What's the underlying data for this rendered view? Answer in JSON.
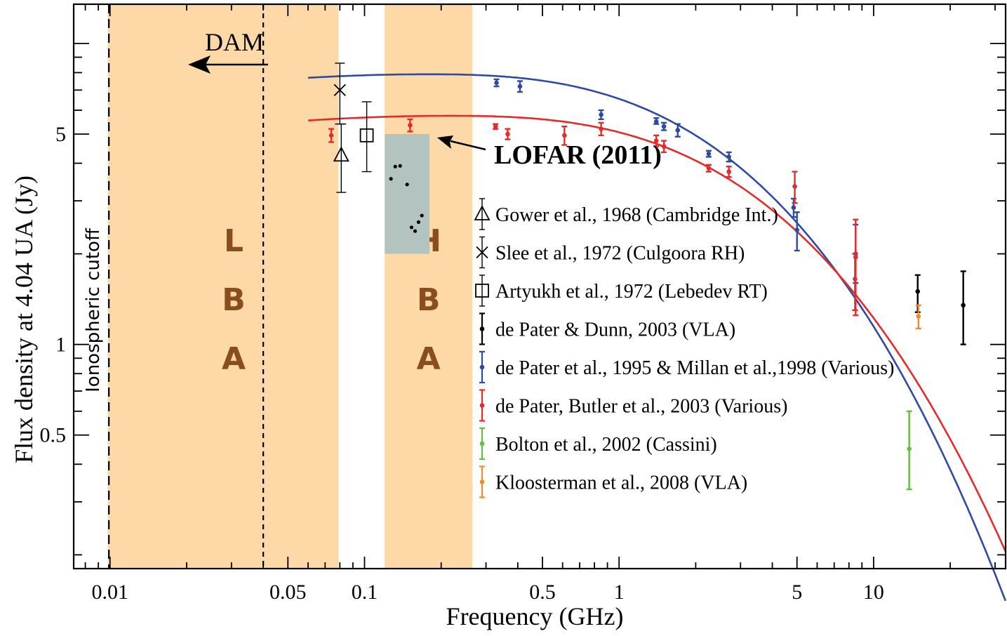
{
  "chart_data": {
    "type": "scatter",
    "xscale": "log",
    "yscale": "log",
    "xlabel": "Frequency (GHz)",
    "ylabel": "Flux density at 4.04 UA (Jy)",
    "xlim": [
      0.0072,
      33
    ],
    "ylim": [
      0.18,
      13.5
    ],
    "xticks": [
      {
        "v": 0.01,
        "label": "0.01"
      },
      {
        "v": 0.05,
        "label": "0.05"
      },
      {
        "v": 0.1,
        "label": "0.1"
      },
      {
        "v": 0.5,
        "label": "0.5"
      },
      {
        "v": 1,
        "label": "1"
      },
      {
        "v": 5,
        "label": "5"
      },
      {
        "v": 10,
        "label": "10"
      }
    ],
    "yticks": [
      {
        "v": 0.5,
        "label": "0.5"
      },
      {
        "v": 1,
        "label": "1"
      },
      {
        "v": 5,
        "label": "5"
      }
    ],
    "bands": [
      {
        "id": "lba",
        "letters": [
          "L",
          "B",
          "A"
        ],
        "x": [
          0.0098,
          0.079
        ],
        "color": "#fdd9a8"
      },
      {
        "id": "hba",
        "letters": [
          "H",
          "B",
          "A"
        ],
        "x": [
          0.12,
          0.265
        ],
        "color": "#fdd9a8"
      }
    ],
    "lofar_box": {
      "x": [
        0.12,
        0.18
      ],
      "y": [
        2.0,
        5.0
      ],
      "color": "#b3c4c0"
    },
    "lofar_label": "LOFAR (2011)",
    "lofar_points": [
      {
        "x": 0.127,
        "y": 3.55
      },
      {
        "x": 0.132,
        "y": 3.9
      },
      {
        "x": 0.138,
        "y": 3.92
      },
      {
        "x": 0.147,
        "y": 3.4
      },
      {
        "x": 0.153,
        "y": 2.45
      },
      {
        "x": 0.158,
        "y": 2.38
      },
      {
        "x": 0.163,
        "y": 2.55
      },
      {
        "x": 0.168,
        "y": 2.68
      }
    ],
    "vlines": [
      {
        "id": "ionospheric",
        "x": 0.0099,
        "label": "Ionospheric cutoff"
      },
      {
        "id": "dam",
        "x": 0.04,
        "label": "DAM"
      }
    ],
    "curves": [
      {
        "color": "#2e4aa3",
        "x0": 0.06,
        "peak": 7.9,
        "peak_f": 0.18,
        "c1": 0.052,
        "c2": 0.128
      },
      {
        "color": "#e52a2a",
        "x0": 0.06,
        "peak": 5.75,
        "peak_f": 0.22,
        "c1": 0.049,
        "c2": 0.118
      }
    ],
    "series": [
      {
        "name": "Gower et al., 1968 (Cambridge Int.)",
        "marker": "triangle",
        "color": "#000000",
        "points": [
          {
            "x": 0.081,
            "y": 4.25,
            "lo": 3.2,
            "hi": 5.4
          }
        ]
      },
      {
        "name": "Slee et al., 1972 (Culgoora RH)",
        "marker": "x",
        "color": "#000000",
        "points": [
          {
            "x": 0.08,
            "y": 7.0,
            "lo": 5.4,
            "hi": 8.6
          }
        ]
      },
      {
        "name": "Artyukh et al., 1972 (Lebedev RT)",
        "marker": "square",
        "color": "#000000",
        "points": [
          {
            "x": 0.102,
            "y": 4.95,
            "lo": 3.75,
            "hi": 6.4
          }
        ]
      },
      {
        "name": "de Pater & Dunn, 2003 (VLA)",
        "marker": "dot",
        "color": "#000000",
        "points": [
          {
            "x": 14.9,
            "y": 1.5,
            "lo": 1.28,
            "hi": 1.7
          },
          {
            "x": 22.5,
            "y": 1.35,
            "lo": 1.0,
            "hi": 1.75
          }
        ]
      },
      {
        "name": "de Pater et al., 1995 & Millan et al.,1998 (Various)",
        "marker": "dot",
        "color": "#2e4aa3",
        "points": [
          {
            "x": 0.33,
            "y": 7.4,
            "lo": 7.2,
            "hi": 7.6
          },
          {
            "x": 0.408,
            "y": 7.2,
            "lo": 6.9,
            "hi": 7.5
          },
          {
            "x": 0.85,
            "y": 5.8,
            "lo": 5.6,
            "hi": 6.0
          },
          {
            "x": 1.4,
            "y": 5.5,
            "lo": 5.4,
            "hi": 5.65
          },
          {
            "x": 1.5,
            "y": 5.3,
            "lo": 5.15,
            "hi": 5.45
          },
          {
            "x": 1.7,
            "y": 5.15,
            "lo": 4.9,
            "hi": 5.4
          },
          {
            "x": 2.25,
            "y": 4.3,
            "lo": 4.2,
            "hi": 4.4
          },
          {
            "x": 2.7,
            "y": 4.2,
            "lo": 4.05,
            "hi": 4.35
          },
          {
            "x": 4.85,
            "y": 2.85,
            "lo": 2.65,
            "hi": 3.05
          },
          {
            "x": 5.0,
            "y": 2.4,
            "lo": 2.05,
            "hi": 2.75
          },
          {
            "x": 8.5,
            "y": 2.0,
            "lo": 1.6,
            "hi": 2.5
          }
        ]
      },
      {
        "name": "de Pater, Butler et al., 2003 (Various)",
        "marker": "dot",
        "color": "#e52a2a",
        "points": [
          {
            "x": 0.074,
            "y": 4.95,
            "lo": 4.7,
            "hi": 5.2
          },
          {
            "x": 0.151,
            "y": 5.35,
            "lo": 5.1,
            "hi": 5.6
          },
          {
            "x": 0.327,
            "y": 5.3,
            "lo": 5.2,
            "hi": 5.4
          },
          {
            "x": 0.365,
            "y": 5.0,
            "lo": 4.8,
            "hi": 5.2
          },
          {
            "x": 0.61,
            "y": 4.95,
            "lo": 4.6,
            "hi": 5.3
          },
          {
            "x": 0.85,
            "y": 5.2,
            "lo": 4.95,
            "hi": 5.45
          },
          {
            "x": 1.4,
            "y": 4.75,
            "lo": 4.55,
            "hi": 4.95
          },
          {
            "x": 1.5,
            "y": 4.55,
            "lo": 4.35,
            "hi": 4.75
          },
          {
            "x": 2.25,
            "y": 3.85,
            "lo": 3.75,
            "hi": 3.95
          },
          {
            "x": 2.7,
            "y": 3.75,
            "lo": 3.6,
            "hi": 3.9
          },
          {
            "x": 4.9,
            "y": 3.35,
            "lo": 2.95,
            "hi": 3.75
          },
          {
            "x": 8.5,
            "y": 1.95,
            "lo": 1.25,
            "hi": 2.6
          },
          {
            "x": 8.45,
            "y": 1.65,
            "lo": 1.3,
            "hi": 2.0
          }
        ]
      },
      {
        "name": "Bolton et al., 2002 (Cassini)",
        "marker": "dot",
        "color": "#66bb44",
        "points": [
          {
            "x": 13.8,
            "y": 0.45,
            "lo": 0.33,
            "hi": 0.6
          }
        ]
      },
      {
        "name": "Kloosterman et al., 2008 (VLA)",
        "marker": "dot",
        "color": "#f08a2a",
        "points": [
          {
            "x": 15.0,
            "y": 1.24,
            "lo": 1.13,
            "hi": 1.35
          }
        ]
      }
    ],
    "legend_position": "center-right",
    "grid": false
  }
}
